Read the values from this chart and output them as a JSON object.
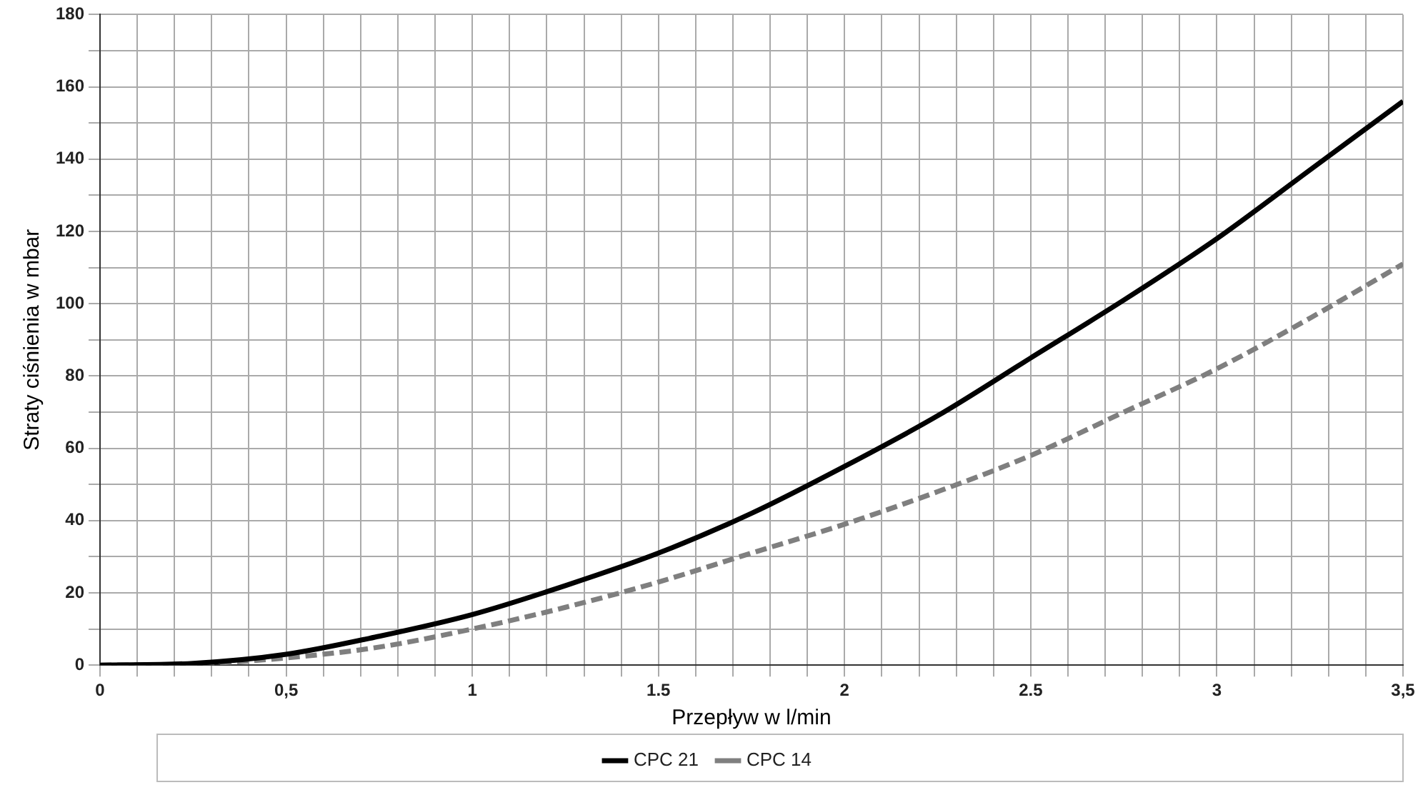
{
  "chart_data": {
    "type": "line",
    "xlabel": "Przepływ w l/min",
    "ylabel": "Straty ciśnienia w mbar",
    "x": [
      0,
      0.25,
      0.5,
      0.75,
      1,
      1.25,
      1.5,
      1.75,
      2,
      2.25,
      2.5,
      2.75,
      3,
      3.25,
      3.5
    ],
    "series": [
      {
        "name": "CPC 21",
        "color": "#000000",
        "line_style": "solid",
        "values": [
          0,
          0.5,
          3,
          8,
          14,
          22,
          31,
          42,
          55,
          69,
          85,
          101,
          118,
          137,
          156
        ]
      },
      {
        "name": "CPC 14",
        "color": "#7f7f7f",
        "line_style": "dashed",
        "values": [
          0,
          0.3,
          2,
          5,
          10,
          16,
          23,
          31,
          39,
          48,
          58,
          70,
          82,
          96,
          111
        ]
      }
    ],
    "xlim": [
      0,
      3.5
    ],
    "xticks": [
      0,
      {
        "value": 0.1,
        "label": null
      },
      {
        "value": 0.2,
        "label": null
      },
      {
        "value": 0.3,
        "label": null
      },
      {
        "value": 0.4,
        "label": null
      },
      {
        "value": 0.5,
        "label": "0,5"
      },
      {
        "value": 0.6,
        "label": null
      },
      {
        "value": 0.7,
        "label": null
      },
      {
        "value": 0.8,
        "label": null
      },
      {
        "value": 0.9,
        "label": null
      },
      1,
      {
        "value": 1.1,
        "label": null
      },
      {
        "value": 1.2,
        "label": null
      },
      {
        "value": 1.3,
        "label": null
      },
      {
        "value": 1.4,
        "label": null
      },
      1.5,
      {
        "value": 1.6,
        "label": null
      },
      {
        "value": 1.7,
        "label": null
      },
      {
        "value": 1.8,
        "label": null
      },
      {
        "value": 1.9,
        "label": null
      },
      2,
      {
        "value": 2.1,
        "label": null
      },
      {
        "value": 2.2,
        "label": null
      },
      {
        "value": 2.3,
        "label": null
      },
      {
        "value": 2.4,
        "label": null
      },
      2.5,
      {
        "value": 2.6,
        "label": null
      },
      {
        "value": 2.7,
        "label": null
      },
      {
        "value": 2.8,
        "label": null
      },
      {
        "value": 2.9,
        "label": null
      },
      3,
      {
        "value": 3.1,
        "label": null
      },
      {
        "value": 3.2,
        "label": null
      },
      {
        "value": 3.3,
        "label": null
      },
      {
        "value": 3.4,
        "label": null
      },
      {
        "value": 3.5,
        "label": "3,5"
      }
    ],
    "ylim": [
      0,
      180
    ],
    "yticks": [
      0,
      {
        "value": 10,
        "label": null
      },
      20,
      {
        "value": 30,
        "label": null
      },
      40,
      {
        "value": 50,
        "label": null
      },
      60,
      {
        "value": 70,
        "label": null
      },
      80,
      {
        "value": 90,
        "label": null
      },
      100,
      {
        "value": 110,
        "label": null
      },
      120,
      {
        "value": 130,
        "label": null
      },
      140,
      {
        "value": 150,
        "label": null
      },
      160,
      {
        "value": 170,
        "label": null
      },
      180
    ],
    "grid": true,
    "legend": "bottom",
    "marker": "none"
  }
}
